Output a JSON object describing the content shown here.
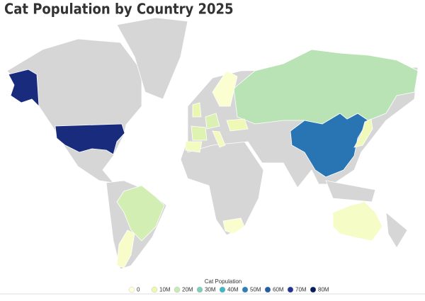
{
  "chart_data": {
    "type": "choropleth",
    "title": "Cat Population by Country 2025",
    "values": [
      74000000,
      53000000,
      22000000,
      17000000,
      5000000,
      4000000,
      8000000,
      3000000,
      15000000,
      14000000,
      11000000,
      6000000,
      9000000,
      2000000,
      7000000
    ],
    "no_data_color": "#d6d6d6",
    "legend": {
      "title": "Cat Population",
      "ticks": [
        0,
        {
          "value": 10000000,
          "label": "10M"
        },
        {
          "value": 20000000,
          "label": "20M"
        },
        {
          "value": 30000000,
          "label": "30M"
        },
        {
          "value": 40000000,
          "label": "40M"
        },
        {
          "value": 50000000,
          "label": "50M"
        },
        {
          "value": 60000000,
          "label": "60M"
        },
        {
          "value": 70000000,
          "label": "70M"
        },
        {
          "value": 80000000,
          "label": "80M"
        }
      ],
      "colors": [
        "#ffffd9",
        "#edf8b1",
        "#c7e9b4",
        "#7fcdbb",
        "#41b6c4",
        "#2c7fb8",
        "#225ea8",
        "#253494",
        "#081d58"
      ]
    }
  }
}
